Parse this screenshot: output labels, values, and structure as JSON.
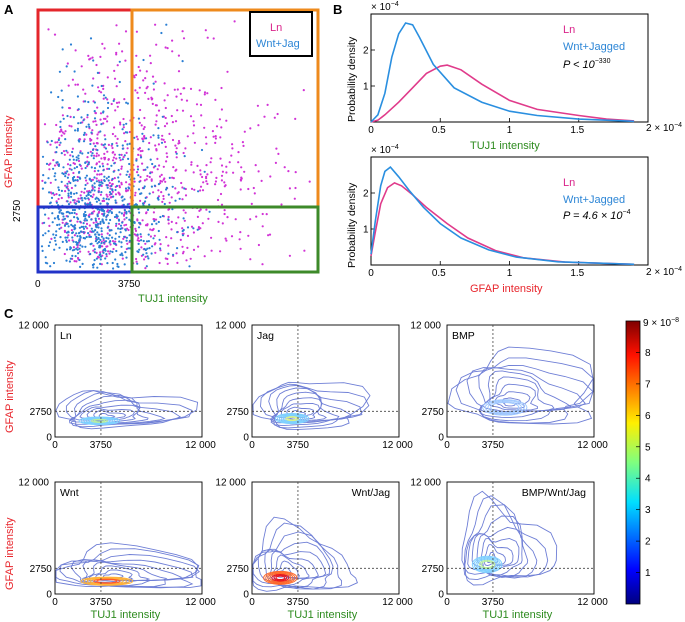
{
  "colors": {
    "ln": "#d233d6",
    "wnt_jag": "#2a7fd4",
    "ln_line": "#e03b8b",
    "jag_line": "#2a8fe0",
    "axis_green": "#2e8b1f",
    "axis_red": "#e8262d",
    "box_red": "#e4262b",
    "box_orange": "#ee8a1c",
    "box_blue": "#2233c8",
    "box_green": "#3d8a2a",
    "contour": "#6f7fd6"
  },
  "panels": {
    "A": {
      "label": "A",
      "xlabel": "TUJ1 intensity",
      "ylabel": "GFAP intensity",
      "x_ticks": [
        "0",
        "3750"
      ],
      "y_ticks": [
        "2750"
      ],
      "legend": [
        "Ln",
        "Wnt+Jag"
      ]
    },
    "B": {
      "label": "B",
      "ylabel": "Probability density",
      "legend_ln": "Ln",
      "legend_jag": "Wnt+Jagged",
      "top_pvalue": "P < 10",
      "top_pvalue_exp": "−330",
      "bottom_pvalue": "P = 4.6 × 10",
      "bottom_pvalue_exp": "−4",
      "top_xlabel": "TUJ1 intensity",
      "bottom_xlabel": "GFAP intensity",
      "scale_base": "× 10",
      "scale_exp": "−4",
      "x_scale_base": "2 × 10",
      "x_scale_exp": "−4"
    },
    "C": {
      "label": "C",
      "xlabel": "TUJ1 intensity",
      "ylabel": "GFAP intensity",
      "x_ticks": [
        "0",
        "3750",
        "12 000"
      ],
      "y_ticks": [
        "0",
        "2750",
        "12 000"
      ],
      "subplots": [
        "Ln",
        "Jag",
        "BMP",
        "Wnt",
        "Wnt/Jag",
        "BMP/Wnt/Jag"
      ],
      "colorbar_label": "9 × 10",
      "colorbar_exp": "−8",
      "colorbar_ticks": [
        "8",
        "7",
        "6",
        "5",
        "4",
        "3",
        "2",
        "1"
      ]
    }
  },
  "chart_data": [
    {
      "type": "scatter",
      "title": "",
      "xlabel": "TUJ1 intensity",
      "ylabel": "GFAP intensity",
      "thresholds": {
        "x": 3750,
        "y": 2750
      },
      "series": [
        {
          "name": "Ln"
        },
        {
          "name": "Wnt+Jag"
        }
      ]
    },
    {
      "type": "line",
      "xlabel": "TUJ1 intensity",
      "ylabel": "Probability density",
      "x_unit": "× 10^-4",
      "y_unit": "× 10^-4",
      "xlim": [
        0,
        2
      ],
      "ylim": [
        0,
        3
      ],
      "x_ticks": [
        0,
        0.5,
        1,
        1.5
      ],
      "y_ticks": [
        1,
        2
      ],
      "series": [
        {
          "name": "Ln",
          "x": [
            0,
            0.05,
            0.1,
            0.2,
            0.3,
            0.4,
            0.5,
            0.55,
            0.65,
            0.8,
            1.0,
            1.2,
            1.5,
            1.7,
            1.9
          ],
          "values": [
            0,
            0.05,
            0.2,
            0.55,
            0.95,
            1.35,
            1.55,
            1.58,
            1.45,
            1.05,
            0.6,
            0.35,
            0.18,
            0.08,
            0.03
          ]
        },
        {
          "name": "Wnt+Jagged",
          "x": [
            0,
            0.05,
            0.1,
            0.15,
            0.2,
            0.25,
            0.3,
            0.35,
            0.45,
            0.6,
            0.8,
            1.0,
            1.2,
            1.5,
            1.9
          ],
          "values": [
            0,
            0.2,
            0.8,
            1.8,
            2.45,
            2.75,
            2.7,
            2.35,
            1.6,
            0.95,
            0.55,
            0.3,
            0.18,
            0.08,
            0.02
          ]
        }
      ]
    },
    {
      "type": "line",
      "xlabel": "GFAP intensity",
      "ylabel": "Probability density",
      "x_unit": "× 10^-4",
      "y_unit": "× 10^-4",
      "xlim": [
        0,
        2
      ],
      "ylim": [
        0,
        3
      ],
      "x_ticks": [
        0,
        0.5,
        1,
        1.5
      ],
      "y_ticks": [
        1,
        2
      ],
      "series": [
        {
          "name": "Ln",
          "x": [
            0,
            0.03,
            0.07,
            0.12,
            0.17,
            0.22,
            0.3,
            0.4,
            0.55,
            0.7,
            0.9,
            1.1,
            1.4,
            1.9
          ],
          "values": [
            0.25,
            0.9,
            1.7,
            2.15,
            2.28,
            2.2,
            1.95,
            1.6,
            1.15,
            0.75,
            0.4,
            0.2,
            0.08,
            0.02
          ]
        },
        {
          "name": "Wnt+Jagged",
          "x": [
            0,
            0.03,
            0.07,
            0.1,
            0.14,
            0.2,
            0.28,
            0.38,
            0.5,
            0.65,
            0.85,
            1.05,
            1.35,
            1.9
          ],
          "values": [
            0.3,
            1.2,
            2.2,
            2.6,
            2.72,
            2.45,
            2.05,
            1.6,
            1.15,
            0.75,
            0.42,
            0.22,
            0.09,
            0.02
          ]
        }
      ]
    },
    {
      "type": "heatmap",
      "xlabel": "TUJ1 intensity",
      "ylabel": "GFAP intensity",
      "xlim": [
        0,
        12000
      ],
      "ylim": [
        0,
        12000
      ],
      "panels": [
        "Ln",
        "Jag",
        "BMP",
        "Wnt",
        "Wnt/Jag",
        "BMP/Wnt/Jag"
      ],
      "colorbar_range": [
        0,
        9e-08
      ]
    }
  ]
}
